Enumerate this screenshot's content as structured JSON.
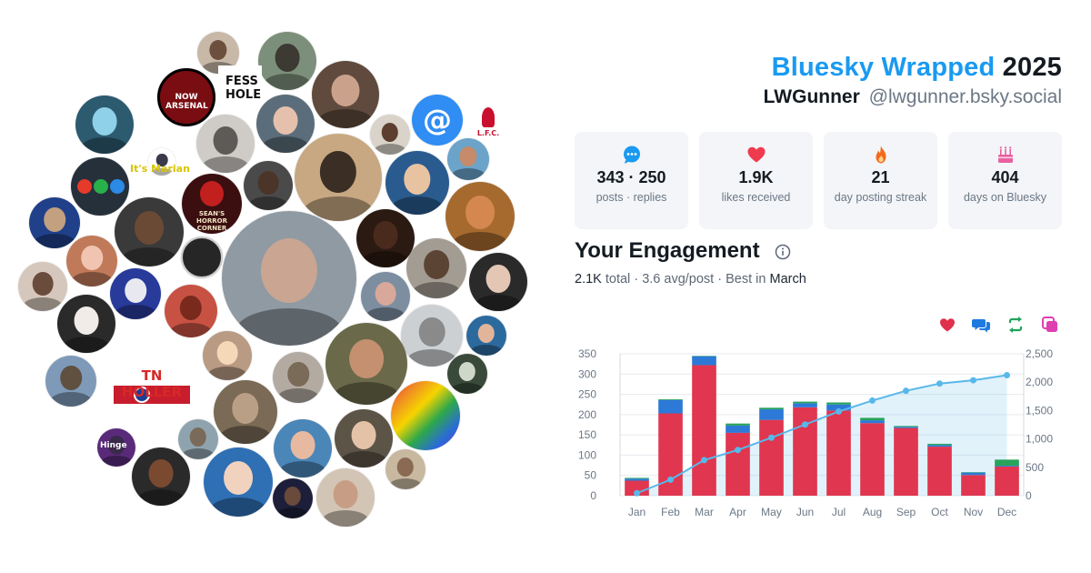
{
  "header": {
    "brand": "Bluesky Wrapped",
    "year": "2025",
    "display_name": "LWGunner",
    "handle": "@lwgunner.bsky.social"
  },
  "stats": [
    {
      "icon": "speech-bubble-icon",
      "color": "#1a9af1",
      "value": "343 · 250",
      "label": "posts · replies"
    },
    {
      "icon": "heart-icon",
      "color": "#ef3b4f",
      "value": "1.9K",
      "label": "likes received"
    },
    {
      "icon": "flame-icon",
      "color": "#f26a1b",
      "value": "21",
      "label": "day posting streak"
    },
    {
      "icon": "cake-icon",
      "color": "#e8609f",
      "value": "404",
      "label": "days on Bluesky"
    }
  ],
  "engagement": {
    "title": "Your Engagement",
    "total_value": "2.1K",
    "total_word": "total",
    "avg": "3.6 avg/post",
    "best_prefix": "Best in",
    "best_month": "March",
    "legend_icons": [
      {
        "name": "likes-heart-icon",
        "color": "#e0314c"
      },
      {
        "name": "replies-bubble-icon",
        "color": "#1f7ae0"
      },
      {
        "name": "reposts-arrows-icon",
        "color": "#21a35a"
      },
      {
        "name": "quotes-icon",
        "color": "#de3fb1"
      }
    ]
  },
  "cluster": {
    "labels": {
      "now_arsenal": "NOW ARSENAL",
      "fess_hole": "FESS HOLE",
      "marian": "It's Marian",
      "tn_holler": "TN HOLLER",
      "horror": "SEAN'S HORROR CORNER",
      "lfc": "L.F.C.",
      "at_symbol": "@",
      "hinge": "Hinge"
    }
  },
  "chart_data": {
    "type": "bar",
    "categories": [
      "Jan",
      "Feb",
      "Mar",
      "Apr",
      "May",
      "Jun",
      "Jul",
      "Aug",
      "Sep",
      "Oct",
      "Nov",
      "Dec"
    ],
    "stacked": true,
    "series": [
      {
        "color": "#e0364f",
        "values": [
          37,
          203,
          322,
          155,
          187,
          218,
          210,
          179,
          167,
          121,
          51,
          72
        ]
      },
      {
        "color": "#2d79d8",
        "values": [
          5,
          33,
          22,
          18,
          26,
          10,
          15,
          7,
          3,
          4,
          6,
          2
        ]
      },
      {
        "color": "#27a35a",
        "values": [
          2,
          2,
          1,
          5,
          4,
          4,
          5,
          6,
          2,
          3,
          1,
          15
        ]
      }
    ],
    "cumulative": {
      "color": "#58b8ea",
      "values": [
        44,
        282,
        627,
        805,
        1022,
        1254,
        1484,
        1676,
        1848,
        1976,
        2034,
        2123
      ]
    },
    "yleft": {
      "ticks": [
        "0",
        "50",
        "100",
        "150",
        "200",
        "250",
        "300",
        "350"
      ],
      "lim": [
        0,
        350
      ]
    },
    "yright": {
      "ticks": [
        "0",
        "500",
        "1,000",
        "1,500",
        "2,000",
        "2,500"
      ],
      "lim": [
        0,
        2500
      ]
    },
    "grid": true
  }
}
